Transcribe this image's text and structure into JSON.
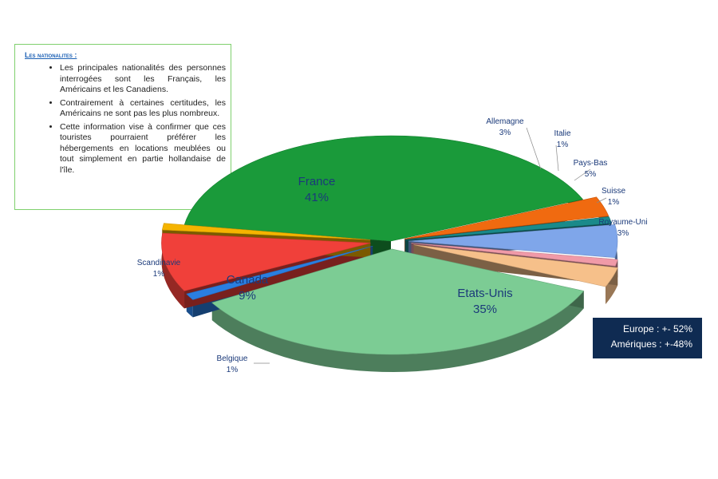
{
  "textbox": {
    "title": "Les nationalites :",
    "bullets": [
      "Les principales nationalités des personnes interrogées sont les Français, les Américains et les Canadiens.",
      "Contrairement à certaines certitudes, les Américains ne sont pas les plus nombreux.",
      "Cette information vise à confirmer que ces touristes pourraient préférer les hébergements en locations meublées ou tout simplement en partie hollandaise de l'île."
    ]
  },
  "summary": {
    "europe": "Europe : +- 52%",
    "ameriques": "Amériques : +-48%"
  },
  "chart_data": {
    "type": "pie",
    "slices": [
      {
        "label": "France",
        "value_label": "41%",
        "value": 41,
        "color": "#1a9a3a"
      },
      {
        "label": "Allemagne",
        "value_label": "3%",
        "value": 3,
        "color": "#f06a10"
      },
      {
        "label": "Italie",
        "value_label": "1%",
        "value": 1,
        "color": "#1a8a8a"
      },
      {
        "label": "Pays-Bas",
        "value_label": "5%",
        "value": 5,
        "color": "#7fa6ea"
      },
      {
        "label": "Suisse",
        "value_label": "1%",
        "value": 1,
        "color": "#f09aa8"
      },
      {
        "label": "Royaume-Uni",
        "value_label": "3%",
        "value": 3,
        "color": "#f6c08a"
      },
      {
        "label": "Etats-Unis",
        "value_label": "35%",
        "value": 35,
        "color": "#7ccc94"
      },
      {
        "label": "Belgique",
        "value_label": "1%",
        "value": 1,
        "color": "#2a7ee0"
      },
      {
        "label": "Canada",
        "value_label": "9%",
        "value": 9,
        "color": "#f0403a"
      },
      {
        "label": "Scandinavie",
        "value_label": "1%",
        "value": 1,
        "color": "#f5b400"
      }
    ]
  }
}
